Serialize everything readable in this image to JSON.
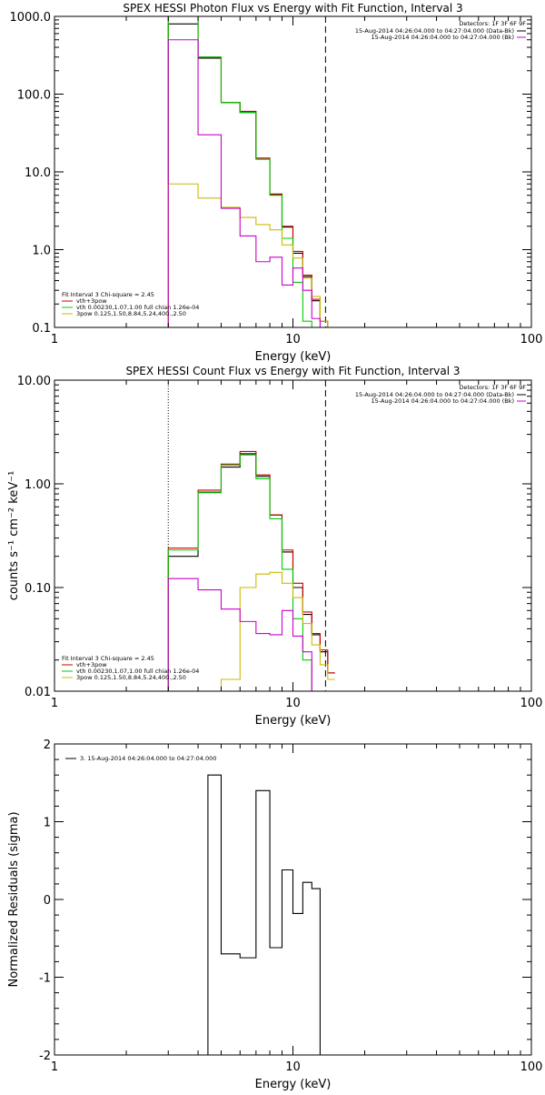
{
  "chart_data": [
    {
      "type": "line",
      "title": "SPEX HESSI Photon Flux vs Energy with Fit Function, Interval 3",
      "xlabel": "Energy (keV)",
      "ylabel": "",
      "xscale": "log",
      "yscale": "log",
      "xlim": [
        1,
        100
      ],
      "ylim": [
        0.1,
        1000
      ],
      "x_ticks": [
        {
          "v": 1,
          "label": "1"
        },
        {
          "v": 10,
          "label": "10"
        },
        {
          "v": 100,
          "label": "100"
        }
      ],
      "y_ticks": [
        {
          "v": 0.1,
          "label": "0.1"
        },
        {
          "v": 1,
          "label": "1.0"
        },
        {
          "v": 10,
          "label": "10.0"
        },
        {
          "v": 100,
          "label": "100.0"
        },
        {
          "v": 1000,
          "label": "1000.0"
        }
      ],
      "vlines": [
        {
          "x": 3.0,
          "style": "dotted"
        },
        {
          "x": 13.7,
          "style": "dashed"
        }
      ],
      "bin_edges": [
        3.0,
        4.0,
        5.0,
        6.0,
        7.0,
        8.0,
        9.0,
        10.0,
        11.0,
        12.0,
        13.0,
        14.0,
        15.0
      ],
      "series": [
        {
          "name": "data",
          "color": "#000000",
          "values": [
            800,
            290,
            78,
            58,
            15,
            5.1,
            1.95,
            0.9,
            0.45,
            0.22,
            0.12,
            0.1
          ]
        },
        {
          "name": "vth+3pow",
          "color": "#cc0000",
          "values": [
            1000,
            300,
            78,
            60,
            15,
            5.2,
            2.0,
            0.95,
            0.47,
            0.23,
            0.12,
            0.1
          ]
        },
        {
          "name": "vth 0.00230,1.07,1.00  full chian 1.26e-04",
          "color": "#00cc00",
          "values": [
            1000,
            300,
            78,
            58,
            14.5,
            5.0,
            1.4,
            0.38,
            0.12,
            0.1,
            0.1,
            0.1
          ]
        },
        {
          "name": "3pow 0.125,1.50,8.84,5.24,400.,2.50",
          "color": "#ccbb00",
          "values": [
            7,
            4.6,
            3.5,
            2.6,
            2.1,
            1.8,
            1.15,
            0.78,
            0.43,
            0.25,
            0.12,
            0.1
          ]
        },
        {
          "name": "",
          "color": "#cc00cc",
          "values": [
            500,
            30,
            3.4,
            1.5,
            0.7,
            0.8,
            0.35,
            0.58,
            0.3,
            0.13,
            0.1,
            0.1
          ]
        }
      ],
      "legend": {
        "placement": "bottom-left",
        "header": "Fit Interval 3   Chi-square = 2.45",
        "entries": [
          {
            "label": "vth+3pow",
            "color": "#cc0000"
          },
          {
            "label": "vth 0.00230,1.07,1.00  full chian 1.26e-04",
            "color": "#00cc00"
          },
          {
            "label": "3pow 0.125,1.50,8.84,5.24,400.,2.50",
            "color": "#ccbb00"
          }
        ]
      },
      "detector_legend": {
        "placement": "top-right",
        "header": "Detectors: 1F 3F 6F 9F",
        "entries": [
          {
            "label": "15-Aug-2014 04:26:04.000 to 04:27:04.000 (Data-Bk)",
            "color": "#000000"
          },
          {
            "label": "15-Aug-2014 04:26:04.000 to 04:27:04.000 (Bk)",
            "color": "#cc00cc"
          }
        ]
      }
    },
    {
      "type": "line",
      "title": "SPEX HESSI Count Flux vs Energy with Fit Function, Interval 3",
      "xlabel": "Energy (keV)",
      "ylabel": "counts s⁻¹ cm⁻² keV⁻¹",
      "xscale": "log",
      "yscale": "log",
      "xlim": [
        1,
        100
      ],
      "ylim": [
        0.01,
        10
      ],
      "x_ticks": [
        {
          "v": 1,
          "label": "1"
        },
        {
          "v": 10,
          "label": "10"
        },
        {
          "v": 100,
          "label": "100"
        }
      ],
      "y_ticks": [
        {
          "v": 0.01,
          "label": "0.01"
        },
        {
          "v": 0.1,
          "label": "0.10"
        },
        {
          "v": 1,
          "label": "1.00"
        },
        {
          "v": 10,
          "label": "10.00"
        }
      ],
      "vlines": [
        {
          "x": 3.0,
          "style": "dotted"
        },
        {
          "x": 13.7,
          "style": "dashed"
        }
      ],
      "bin_edges": [
        3.0,
        4.0,
        5.0,
        6.0,
        7.0,
        8.0,
        9.0,
        10.0,
        11.0,
        12.0,
        13.0,
        14.0,
        15.0
      ],
      "series": [
        {
          "name": "data",
          "color": "#000000",
          "values": [
            0.2,
            0.83,
            1.45,
            1.95,
            1.18,
            0.5,
            0.22,
            0.1,
            0.055,
            0.035,
            0.024,
            0.015
          ]
        },
        {
          "name": "vth+3pow",
          "color": "#cc0000",
          "values": [
            0.24,
            0.87,
            1.55,
            2.05,
            1.22,
            0.5,
            0.23,
            0.11,
            0.058,
            0.036,
            0.025,
            0.015
          ]
        },
        {
          "name": "vth 0.00230,1.07,1.00  full chian 1.26e-04",
          "color": "#00cc00",
          "values": [
            0.23,
            0.82,
            1.52,
            1.9,
            1.12,
            0.46,
            0.15,
            0.05,
            0.02,
            0.01,
            0.01,
            0.01
          ]
        },
        {
          "name": "3pow 0.125,1.50,8.84,5.24,400.,2.50",
          "color": "#ccbb00",
          "values": [
            0.01,
            0.01,
            0.013,
            0.1,
            0.135,
            0.14,
            0.11,
            0.08,
            0.045,
            0.028,
            0.018,
            0.013
          ]
        },
        {
          "name": "",
          "color": "#cc00cc",
          "values": [
            0.122,
            0.095,
            0.062,
            0.047,
            0.036,
            0.035,
            0.06,
            0.034,
            0.024,
            0.01,
            0.01,
            0.01
          ]
        }
      ],
      "legend": {
        "placement": "bottom-left",
        "header": "Fit Interval 3   Chi-square = 2.45",
        "entries": [
          {
            "label": "vth+3pow",
            "color": "#cc0000"
          },
          {
            "label": "vth 0.00230,1.07,1.00  full chian 1.26e-04",
            "color": "#00cc00"
          },
          {
            "label": "3pow 0.125,1.50,8.84,5.24,400.,2.50",
            "color": "#ccbb00"
          }
        ]
      },
      "detector_legend": {
        "placement": "top-right",
        "header": "Detectors: 1F 3F 6F 9F",
        "entries": [
          {
            "label": "15-Aug-2014 04:26:04.000 to 04:27:04.000 (Data-Bk)",
            "color": "#000000"
          },
          {
            "label": "15-Aug-2014 04:26:04.000 to 04:27:04.000 (Bk)",
            "color": "#cc00cc"
          }
        ]
      }
    },
    {
      "type": "line",
      "title": "",
      "xlabel": "Energy (keV)",
      "ylabel": "Normalized Residuals (sigma)",
      "xscale": "log",
      "yscale": "linear",
      "xlim": [
        1,
        100
      ],
      "ylim": [
        -2,
        2
      ],
      "x_ticks": [
        {
          "v": 1,
          "label": "1"
        },
        {
          "v": 10,
          "label": "10"
        },
        {
          "v": 100,
          "label": "100"
        }
      ],
      "y_ticks": [
        {
          "v": -2,
          "label": "-2"
        },
        {
          "v": -1,
          "label": "-1"
        },
        {
          "v": 0,
          "label": "0"
        },
        {
          "v": 1,
          "label": "1"
        },
        {
          "v": 2,
          "label": "2"
        }
      ],
      "bin_edges": [
        3.0,
        4.0,
        4.4,
        5.0,
        6.0,
        7.0,
        8.0,
        9.0,
        10.0,
        11.0,
        12.0,
        13.0,
        13.7
      ],
      "series": [
        {
          "name": "3. 15-Aug-2014 04:26:04.000 to 04:27:04.000",
          "color": "#000000",
          "values": [
            -2.0,
            -2.0,
            1.6,
            -0.7,
            -0.75,
            1.4,
            -0.62,
            0.38,
            -0.18,
            0.22,
            0.14,
            -2.0
          ]
        }
      ],
      "legend": {
        "placement": "top-left",
        "header": "",
        "entries": [
          {
            "label": "3. 15-Aug-2014 04:26:04.000 to 04:27:04.000",
            "color": "#000000"
          }
        ]
      }
    }
  ]
}
